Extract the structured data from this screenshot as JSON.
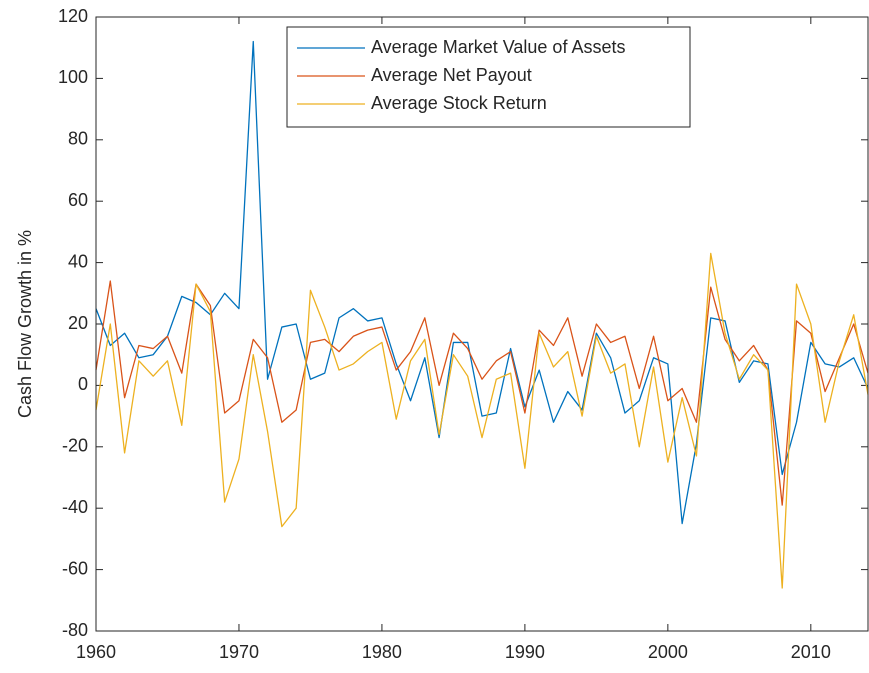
{
  "chart_data": {
    "type": "line",
    "y_label": "Cash Flow Growth in %",
    "x": [
      1960,
      1961,
      1962,
      1963,
      1964,
      1965,
      1966,
      1967,
      1968,
      1969,
      1970,
      1971,
      1972,
      1973,
      1974,
      1975,
      1976,
      1977,
      1978,
      1979,
      1980,
      1981,
      1982,
      1983,
      1984,
      1985,
      1986,
      1987,
      1988,
      1989,
      1990,
      1991,
      1992,
      1993,
      1994,
      1995,
      1996,
      1997,
      1998,
      1999,
      2000,
      2001,
      2002,
      2003,
      2004,
      2005,
      2006,
      2007,
      2008,
      2009,
      2010,
      2011,
      2012,
      2013,
      2014
    ],
    "series": [
      {
        "name": "Average Market Value of Assets",
        "color": "#0072bd",
        "values": [
          25,
          13,
          17,
          9,
          10,
          16,
          29,
          27,
          23,
          30,
          25,
          112,
          2,
          19,
          20,
          2,
          4,
          22,
          25,
          21,
          22,
          7,
          -5,
          9,
          -17,
          14,
          14,
          -10,
          -9,
          12,
          -7,
          5,
          -12,
          -2,
          -8,
          17,
          9,
          -9,
          -5,
          9,
          7,
          -45,
          -19,
          22,
          21,
          1,
          8,
          7,
          -29,
          -12,
          14,
          7,
          6,
          9,
          -1
        ]
      },
      {
        "name": "Average Net Payout",
        "color": "#d95319",
        "values": [
          5,
          34,
          -4,
          13,
          12,
          16,
          4,
          33,
          26,
          -9,
          -5,
          15,
          9,
          -12,
          -8,
          14,
          15,
          11,
          16,
          18,
          19,
          5,
          11,
          22,
          0,
          17,
          12,
          2,
          8,
          11,
          -9,
          18,
          13,
          22,
          3,
          20,
          14,
          16,
          -1,
          16,
          -5,
          -1,
          -12,
          32,
          15,
          8,
          13,
          5,
          -39,
          21,
          17,
          -2,
          9,
          20,
          4
        ]
      },
      {
        "name": "Average Stock Return",
        "color": "#edb120",
        "values": [
          -8,
          20,
          -22,
          8,
          3,
          8,
          -13,
          33,
          24,
          -38,
          -24,
          10,
          -15,
          -46,
          -40,
          31,
          19,
          5,
          7,
          11,
          14,
          -11,
          8,
          15,
          -16,
          10,
          3,
          -17,
          2,
          4,
          -27,
          17,
          6,
          11,
          -10,
          16,
          4,
          7,
          -20,
          6,
          -25,
          -4,
          -23,
          43,
          17,
          2,
          10,
          5,
          -66,
          33,
          20,
          -12,
          8,
          23,
          -3
        ]
      }
    ],
    "xlim": [
      1960,
      2014
    ],
    "xticks": [
      1960,
      1970,
      1980,
      1990,
      2000,
      2010
    ],
    "ylim": [
      -80,
      120
    ],
    "yticks": [
      -80,
      -60,
      -40,
      -20,
      0,
      20,
      40,
      60,
      80,
      100,
      120
    ],
    "grid": false,
    "legend_position": "top"
  }
}
